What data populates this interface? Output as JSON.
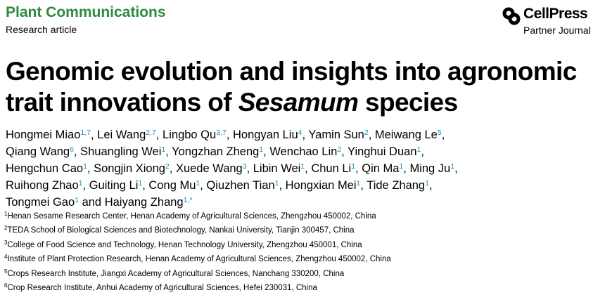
{
  "header": {
    "journal": "Plant Communications",
    "article_type": "Research article",
    "publisher": "CellPress",
    "publisher_sub": "Partner Journal"
  },
  "title": {
    "lines": [
      [
        "Genomic evolution and insights into agronomic"
      ],
      [
        "trait innovations of ",
        "Sesamum",
        " species"
      ]
    ]
  },
  "authors": {
    "lines": [
      [
        {
          "name": "Hongmei Miao",
          "sup": "1,7",
          "sep": ", "
        },
        {
          "name": "Lei Wang",
          "sup": "2,7",
          "sep": ", "
        },
        {
          "name": "Lingbo Qu",
          "sup": "3,7",
          "sep": ", "
        },
        {
          "name": "Hongyan Liu",
          "sup": "4",
          "sep": ", "
        },
        {
          "name": "Yamin Sun",
          "sup": "2",
          "sep": ", "
        },
        {
          "name": "Meiwang Le",
          "sup": "5",
          "sep": ","
        }
      ],
      [
        {
          "name": "Qiang Wang",
          "sup": "6",
          "sep": ", "
        },
        {
          "name": "Shuangling Wei",
          "sup": "1",
          "sep": ", "
        },
        {
          "name": "Yongzhan Zheng",
          "sup": "1",
          "sep": ", "
        },
        {
          "name": "Wenchao Lin",
          "sup": "2",
          "sep": ", "
        },
        {
          "name": "Yinghui Duan",
          "sup": "1",
          "sep": ","
        }
      ],
      [
        {
          "name": "Hengchun Cao",
          "sup": "1",
          "sep": ", "
        },
        {
          "name": "Songjin Xiong",
          "sup": "2",
          "sep": ", "
        },
        {
          "name": "Xuede Wang",
          "sup": "3",
          "sep": ", "
        },
        {
          "name": "Libin Wei",
          "sup": "1",
          "sep": ", "
        },
        {
          "name": "Chun Li",
          "sup": "1",
          "sep": ", "
        },
        {
          "name": "Qin Ma",
          "sup": "1",
          "sep": ", "
        },
        {
          "name": "Ming Ju",
          "sup": "1",
          "sep": ","
        }
      ],
      [
        {
          "name": "Ruihong Zhao",
          "sup": "1",
          "sep": ", "
        },
        {
          "name": "Guiting Li",
          "sup": "1",
          "sep": ", "
        },
        {
          "name": "Cong Mu",
          "sup": "1",
          "sep": ", "
        },
        {
          "name": "Qiuzhen Tian",
          "sup": "1",
          "sep": ", "
        },
        {
          "name": "Hongxian Mei",
          "sup": "1",
          "sep": ", "
        },
        {
          "name": "Tide Zhang",
          "sup": "1",
          "sep": ","
        }
      ],
      [
        {
          "name": "Tongmei Gao",
          "sup": "1",
          "sep": " and "
        },
        {
          "name": "Haiyang Zhang",
          "sup": "1,*"
        }
      ]
    ]
  },
  "affiliations": [
    {
      "num": "1",
      "text": "Henan Sesame Research Center, Henan Academy of Agricultural Sciences, Zhengzhou 450002, China"
    },
    {
      "num": "2",
      "text": "TEDA School of Biological Sciences and Biotechnology, Nankai University, Tianjin 300457, China"
    },
    {
      "num": "3",
      "text": "College of Food Science and Technology, Henan Technology University, Zhengzhou 450001, China"
    },
    {
      "num": "4",
      "text": "Institute of Plant Protection Research, Henan Academy of Agricultural Sciences, Zhengzhou 450002, China"
    },
    {
      "num": "5",
      "text": "Crops Research Institute, Jiangxi Academy of Agricultural Sciences, Nanchang 330200, China"
    },
    {
      "num": "6",
      "text": "Crop Research Institute, Anhui Academy of Agricultural Sciences, Hefei 230031, China"
    }
  ]
}
